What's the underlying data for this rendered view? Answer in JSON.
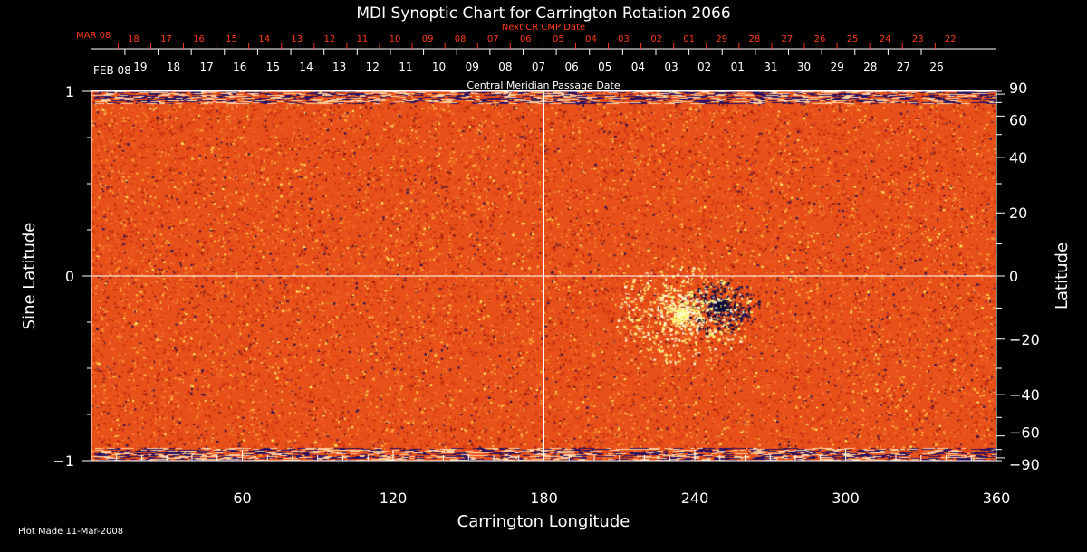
{
  "chart_data": {
    "type": "heatmap",
    "title": "MDI Synoptic Chart for Carrington Rotation 2066",
    "xlabel": "Carrington Longitude",
    "ylabel_left": "Sine Latitude",
    "ylabel_right": "Latitude",
    "xlim": [
      0,
      360
    ],
    "ylim": [
      -1,
      1
    ],
    "x_ticks": [
      60,
      120,
      180,
      240,
      300,
      360
    ],
    "y_ticks_left": [
      {
        "value": 1,
        "label": "1"
      },
      {
        "value": 0,
        "label": "0"
      },
      {
        "value": -1,
        "label": "−1"
      }
    ],
    "y_ticks_right": [
      {
        "deg": 90,
        "label": "90"
      },
      {
        "deg": 60,
        "label": "60"
      },
      {
        "deg": 40,
        "label": "40"
      },
      {
        "deg": 20,
        "label": "20"
      },
      {
        "deg": 0,
        "label": "0"
      },
      {
        "deg": -20,
        "label": "−20"
      },
      {
        "deg": -40,
        "label": "−40"
      },
      {
        "deg": -60,
        "label": "−60"
      },
      {
        "deg": -90,
        "label": "−90"
      }
    ],
    "reference_lines": {
      "longitude": 180,
      "sine_latitude": 0
    },
    "grid": false,
    "top_axis_cmp": {
      "label": "Central Meridian Passage Date",
      "month_label": "FEB 08",
      "dates": [
        "19",
        "18",
        "17",
        "16",
        "15",
        "14",
        "13",
        "12",
        "11",
        "10",
        "09",
        "08",
        "07",
        "06",
        "05",
        "04",
        "03",
        "02",
        "01",
        "31",
        "30",
        "29",
        "28",
        "27",
        "26"
      ],
      "first_date_longitude": 13.3,
      "spacing_deg": 13.2
    },
    "top_axis_next_cmp": {
      "label": "Next CR CMP Date",
      "month_label": "MAR 08",
      "dates": [
        "18",
        "17",
        "16",
        "15",
        "14",
        "13",
        "12",
        "11",
        "10",
        "09",
        "08",
        "07",
        "06",
        "05",
        "04",
        "03",
        "02",
        "01",
        "29",
        "28",
        "27",
        "26",
        "25",
        "24",
        "23",
        "22"
      ],
      "first_date_longitude": 10.6,
      "spacing_deg": 13.0
    },
    "colors": {
      "background": "#e8501a",
      "bright": "#fff060",
      "dark": "#1a1250",
      "next_cmp": "#ff3a1a"
    },
    "features": [
      {
        "name": "active region",
        "longitude": 250,
        "sine_latitude": -0.16,
        "polarity": "negative"
      },
      {
        "name": "plage",
        "longitude": 235,
        "sine_latitude": -0.2,
        "polarity": "positive"
      }
    ]
  },
  "footer": {
    "plot_made": "Plot Made 11-Mar-2008"
  }
}
